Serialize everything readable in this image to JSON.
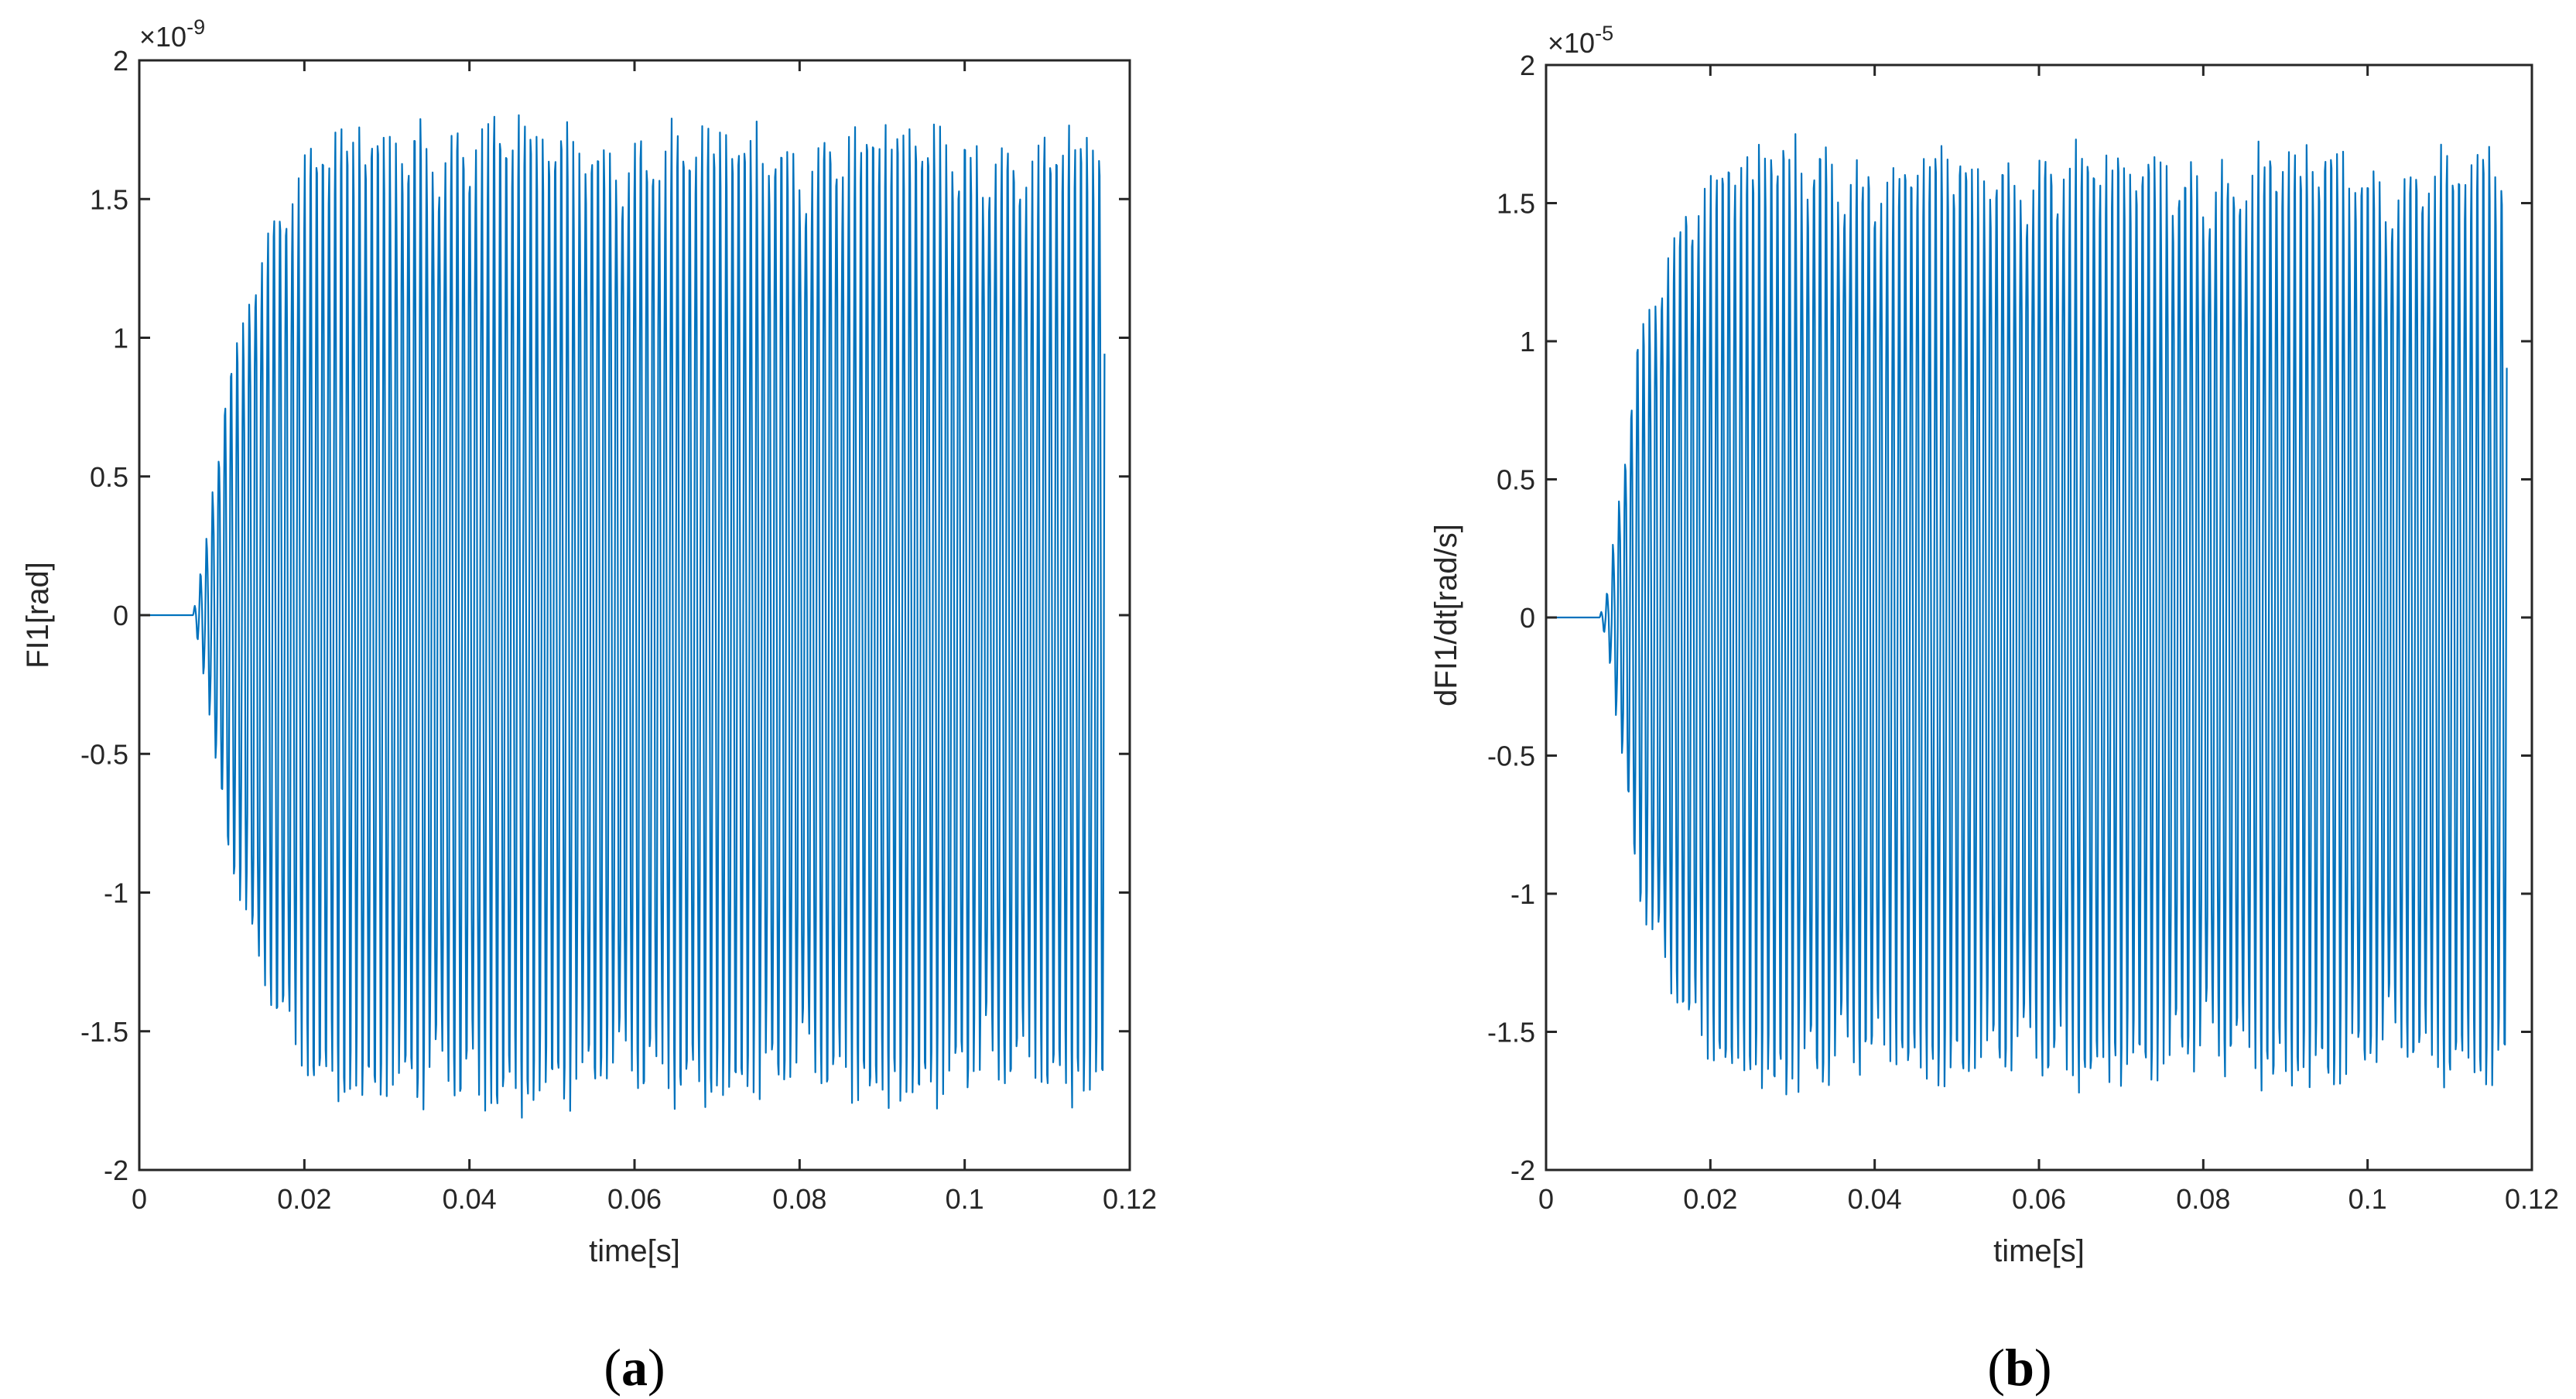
{
  "colors": {
    "line": "#0072BD",
    "axis": "#262626",
    "background": "#ffffff"
  },
  "chart_data": [
    {
      "type": "line",
      "panel_label": "a",
      "xlabel": "time[s]",
      "ylabel": "FI1[rad]",
      "y_exponent_base": "×10",
      "y_exponent_power": "-9",
      "xlim": [
        0,
        0.12
      ],
      "ylim": [
        -2,
        2
      ],
      "x_ticks": [
        0,
        0.02,
        0.04,
        0.06,
        0.08,
        0.1,
        0.12
      ],
      "x_tick_labels": [
        "0",
        "0.02",
        "0.04",
        "0.06",
        "0.08",
        "0.1",
        "0.12"
      ],
      "y_ticks": [
        -2,
        -1.5,
        -1,
        -0.5,
        0,
        0.5,
        1,
        1.5,
        2
      ],
      "y_tick_labels": [
        "-2",
        "-1.5",
        "-1",
        "-0.5",
        "0",
        "0.5",
        "1",
        "1.5",
        "2"
      ],
      "grid": false,
      "series": [
        {
          "signal": "oscillation",
          "start_time": 0.0065,
          "end_time": 0.117,
          "rise_end_time": 0.022,
          "steady_amplitude": 1.76,
          "oscillation_frequency_hz": 1350,
          "envelope": [
            [
              0,
              0
            ],
            [
              0.0065,
              0
            ],
            [
              0.008,
              0.25
            ],
            [
              0.01,
              0.75
            ],
            [
              0.012,
              1.1
            ],
            [
              0.014,
              1.35
            ],
            [
              0.016,
              1.5
            ],
            [
              0.018,
              1.6
            ],
            [
              0.02,
              1.7
            ],
            [
              0.022,
              1.76
            ],
            [
              0.034,
              1.85
            ],
            [
              0.06,
              1.78
            ],
            [
              0.08,
              1.8
            ],
            [
              0.1,
              1.78
            ],
            [
              0.117,
              1.77
            ]
          ]
        }
      ]
    },
    {
      "type": "line",
      "panel_label": "b",
      "xlabel": "time[s]",
      "ylabel": "dFI1/dt[rad/s]",
      "y_exponent_base": "×10",
      "y_exponent_power": "-5",
      "xlim": [
        0,
        0.12
      ],
      "ylim": [
        -2,
        2
      ],
      "x_ticks": [
        0,
        0.02,
        0.04,
        0.06,
        0.08,
        0.1,
        0.12
      ],
      "x_tick_labels": [
        "0",
        "0.02",
        "0.04",
        "0.06",
        "0.08",
        "0.1",
        "0.12"
      ],
      "y_ticks": [
        -2,
        -1.5,
        -1,
        -0.5,
        0,
        0.5,
        1,
        1.5,
        2
      ],
      "y_tick_labels": [
        "-2",
        "-1.5",
        "-1",
        "-0.5",
        "0",
        "0.5",
        "1",
        "1.5",
        "2"
      ],
      "grid": false,
      "series": [
        {
          "signal": "oscillation",
          "start_time": 0.0065,
          "end_time": 0.117,
          "rise_end_time": 0.021,
          "steady_amplitude": 1.7,
          "oscillation_frequency_hz": 1350,
          "envelope": [
            [
              0,
              0
            ],
            [
              0.0065,
              0
            ],
            [
              0.0075,
              0.1
            ],
            [
              0.009,
              0.5
            ],
            [
              0.011,
              1.0
            ],
            [
              0.013,
              1.3
            ],
            [
              0.015,
              1.45
            ],
            [
              0.017,
              1.55
            ],
            [
              0.019,
              1.62
            ],
            [
              0.021,
              1.7
            ],
            [
              0.033,
              1.78
            ],
            [
              0.04,
              1.7
            ],
            [
              0.06,
              1.72
            ],
            [
              0.08,
              1.72
            ],
            [
              0.1,
              1.72
            ],
            [
              0.117,
              1.7
            ]
          ]
        }
      ]
    }
  ]
}
